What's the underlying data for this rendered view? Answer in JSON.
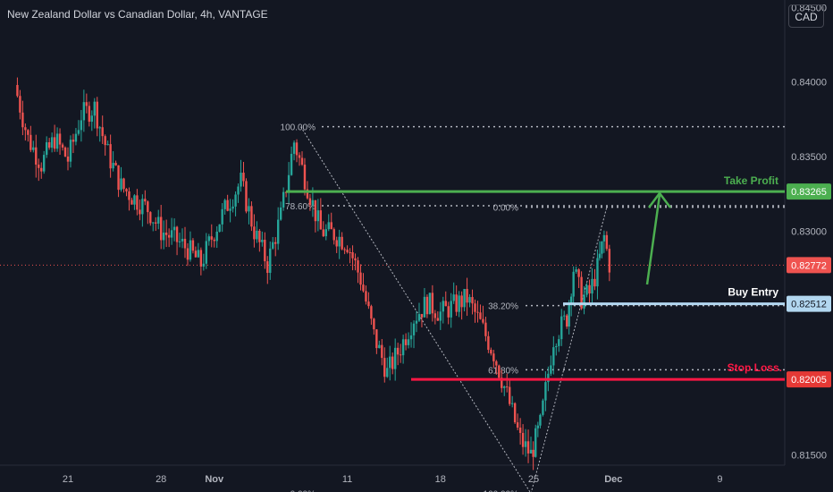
{
  "header": {
    "title": "New Zealand Dollar vs Canadian Dollar, 4h, VANTAGE",
    "currency_button": "CAD"
  },
  "colors": {
    "background": "#131722",
    "up": "#26a69a",
    "down": "#ef5350",
    "take_profit": "#4caf50",
    "stop_loss": "#ff1744",
    "buy_entry": "#b2d7f0",
    "fib": "#b2b5be",
    "text": "#b2b5be"
  },
  "chart_data": {
    "type": "candlestick",
    "title": "New Zealand Dollar vs Canadian Dollar, 4h, VANTAGE",
    "y_axis": {
      "range": [
        0.8143,
        0.8455
      ],
      "ticks": [
        0.845,
        0.84,
        0.835,
        0.83,
        0.815
      ],
      "tick_labels": [
        "0.84500",
        "0.84000",
        "0.83500",
        "0.83000",
        "0.81500"
      ]
    },
    "x_axis": {
      "ticks": [
        {
          "label": "21",
          "day": 21
        },
        {
          "label": "28",
          "day": 28
        },
        {
          "label": "Nov",
          "day": 32
        },
        {
          "label": "11",
          "day": 42
        },
        {
          "label": "18",
          "day": 49
        },
        {
          "label": "25",
          "day": 56
        },
        {
          "label": "Dec",
          "day": 62
        },
        {
          "label": "9",
          "day": 70
        }
      ]
    },
    "price_path": [
      [
        17,
        0.8398
      ],
      [
        18,
        0.8362
      ],
      [
        19,
        0.8345
      ],
      [
        20,
        0.8362
      ],
      [
        21,
        0.8348
      ],
      [
        22,
        0.8378
      ],
      [
        23,
        0.8383
      ],
      [
        24,
        0.8352
      ],
      [
        25,
        0.833
      ],
      [
        26,
        0.8322
      ],
      [
        27,
        0.8315
      ],
      [
        28,
        0.83
      ],
      [
        29,
        0.8295
      ],
      [
        30,
        0.8288
      ],
      [
        31,
        0.8278
      ],
      [
        32,
        0.83
      ],
      [
        33,
        0.8318
      ],
      [
        34,
        0.8333
      ],
      [
        35,
        0.83
      ],
      [
        36,
        0.8278
      ],
      [
        37,
        0.831
      ],
      [
        38,
        0.836
      ],
      [
        39,
        0.833
      ],
      [
        40,
        0.83
      ],
      [
        41,
        0.8298
      ],
      [
        42,
        0.8292
      ],
      [
        43,
        0.8268
      ],
      [
        44,
        0.823
      ],
      [
        45,
        0.8205
      ],
      [
        46,
        0.8222
      ],
      [
        47,
        0.8242
      ],
      [
        48,
        0.8252
      ],
      [
        49,
        0.8245
      ],
      [
        50,
        0.825
      ],
      [
        51,
        0.8255
      ],
      [
        52,
        0.8238
      ],
      [
        53,
        0.8218
      ],
      [
        54,
        0.819
      ],
      [
        55,
        0.816
      ],
      [
        55.8,
        0.815
      ],
      [
        56.5,
        0.817
      ],
      [
        57.5,
        0.8228
      ],
      [
        58.5,
        0.8242
      ],
      [
        59,
        0.8275
      ],
      [
        59.6,
        0.8255
      ],
      [
        60.2,
        0.8258
      ],
      [
        60.8,
        0.8275
      ],
      [
        61.3,
        0.8296
      ],
      [
        61.7,
        0.8278
      ]
    ],
    "current_price": {
      "value": 0.82772,
      "label": "0.82772"
    },
    "levels": [
      {
        "name": "Take Profit",
        "value": 0.83265,
        "label": "0.83265"
      },
      {
        "name": "Buy Entry",
        "value": 0.82512,
        "label": "0.82512"
      },
      {
        "name": "Stop Loss",
        "value": 0.82005,
        "label": "0.82005"
      }
    ],
    "fib_retracement_1": {
      "levels": [
        {
          "label": "100.00%",
          "value": 0.837
        },
        {
          "label": "78.60%",
          "value": 0.8317
        },
        {
          "label": "0.00%",
          "value": 0.8124
        }
      ]
    },
    "fib_retracement_2": {
      "levels": [
        {
          "label": "0.00%",
          "value": 0.8316
        },
        {
          "label": "38.20%",
          "value": 0.825
        },
        {
          "label": "61.80%",
          "value": 0.8207
        },
        {
          "label": "100.00%",
          "value": 0.8124
        }
      ]
    },
    "annotations": [
      {
        "text": "Take Profit"
      },
      {
        "text": "Buy Entry"
      },
      {
        "text": "Stop Loss."
      }
    ]
  }
}
